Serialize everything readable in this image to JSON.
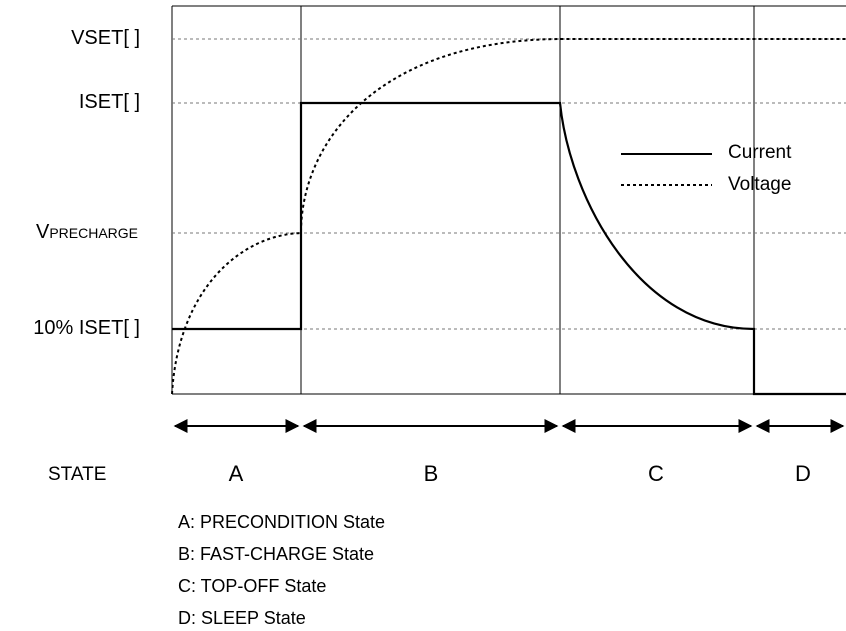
{
  "y_labels": {
    "vset": "VSET[ ]",
    "iset": "ISET[ ]",
    "vprecharge_main": "V",
    "vprecharge_sub": "PRECHARGE",
    "iset10": "10% ISET[ ]"
  },
  "legend": {
    "current": "Current",
    "voltage": "Voltage"
  },
  "state_row": {
    "label": "STATE",
    "letters": [
      "A",
      "B",
      "C",
      "D"
    ]
  },
  "descriptions": [
    "A: PRECONDITION State",
    "B: FAST-CHARGE State",
    "C: TOP-OFF State",
    "D: SLEEP State"
  ]
}
